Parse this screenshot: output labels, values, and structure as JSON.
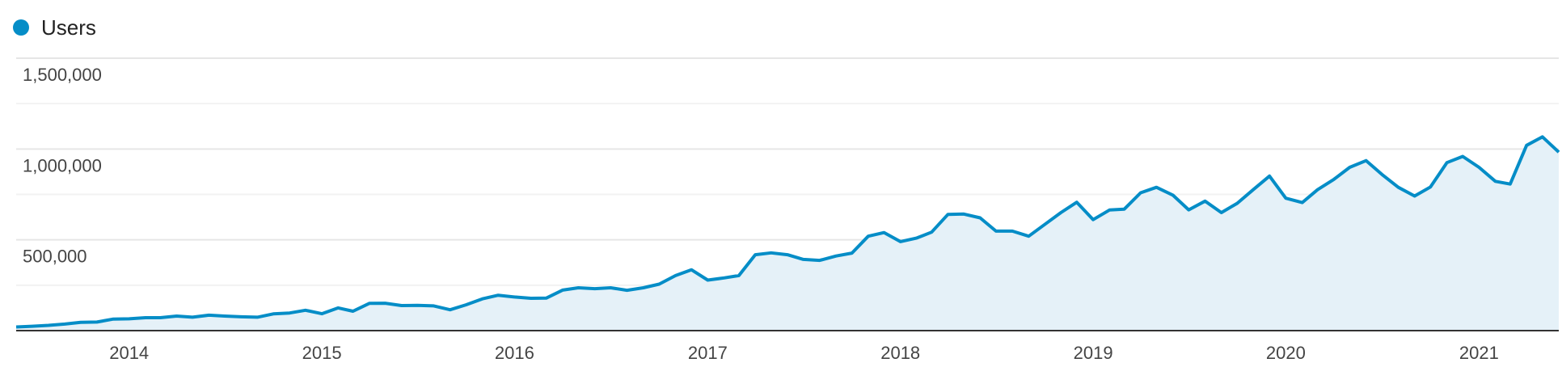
{
  "chart_data": {
    "type": "area",
    "series": [
      {
        "name": "Users",
        "color": "#058dc7",
        "fill": "#e5f1f8",
        "points": [
          [
            "2013-06",
            20000
          ],
          [
            "2013-07",
            24000
          ],
          [
            "2013-08",
            29000
          ],
          [
            "2013-09",
            36000
          ],
          [
            "2013-10",
            46000
          ],
          [
            "2013-11",
            47000
          ],
          [
            "2013-12",
            63000
          ],
          [
            "2014-01",
            65000
          ],
          [
            "2014-02",
            71000
          ],
          [
            "2014-03",
            71000
          ],
          [
            "2014-04",
            80000
          ],
          [
            "2014-05",
            74000
          ],
          [
            "2014-06",
            85000
          ],
          [
            "2014-07",
            80000
          ],
          [
            "2014-08",
            76000
          ],
          [
            "2014-09",
            74000
          ],
          [
            "2014-10",
            92000
          ],
          [
            "2014-11",
            97000
          ],
          [
            "2014-12",
            112000
          ],
          [
            "2015-01",
            93000
          ],
          [
            "2015-02",
            125000
          ],
          [
            "2015-03",
            107000
          ],
          [
            "2015-04",
            150000
          ],
          [
            "2015-05",
            151000
          ],
          [
            "2015-06",
            138000
          ],
          [
            "2015-07",
            139000
          ],
          [
            "2015-08",
            136000
          ],
          [
            "2015-09",
            115000
          ],
          [
            "2015-10",
            142000
          ],
          [
            "2015-11",
            175000
          ],
          [
            "2015-12",
            195000
          ],
          [
            "2016-01",
            185000
          ],
          [
            "2016-02",
            178000
          ],
          [
            "2016-03",
            179000
          ],
          [
            "2016-04",
            223000
          ],
          [
            "2016-05",
            236000
          ],
          [
            "2016-06",
            231000
          ],
          [
            "2016-07",
            236000
          ],
          [
            "2016-08",
            222000
          ],
          [
            "2016-09",
            236000
          ],
          [
            "2016-10",
            256000
          ],
          [
            "2016-11",
            303000
          ],
          [
            "2016-12",
            335000
          ],
          [
            "2017-01",
            278000
          ],
          [
            "2017-02",
            290000
          ],
          [
            "2017-03",
            303000
          ],
          [
            "2017-04",
            418000
          ],
          [
            "2017-05",
            428000
          ],
          [
            "2017-06",
            418000
          ],
          [
            "2017-07",
            392000
          ],
          [
            "2017-08",
            387000
          ],
          [
            "2017-09",
            411000
          ],
          [
            "2017-10",
            427000
          ],
          [
            "2017-11",
            520000
          ],
          [
            "2017-12",
            540000
          ],
          [
            "2018-01",
            490000
          ],
          [
            "2018-02",
            510000
          ],
          [
            "2018-03",
            542000
          ],
          [
            "2018-04",
            640000
          ],
          [
            "2018-05",
            642000
          ],
          [
            "2018-06",
            621000
          ],
          [
            "2018-07",
            548000
          ],
          [
            "2018-08",
            548000
          ],
          [
            "2018-09",
            520000
          ],
          [
            "2018-10",
            584000
          ],
          [
            "2018-11",
            650000
          ],
          [
            "2018-12",
            707000
          ],
          [
            "2019-01",
            611000
          ],
          [
            "2019-02",
            664000
          ],
          [
            "2019-03",
            669000
          ],
          [
            "2019-04",
            759000
          ],
          [
            "2019-05",
            789000
          ],
          [
            "2019-06",
            746000
          ],
          [
            "2019-07",
            665000
          ],
          [
            "2019-08",
            713000
          ],
          [
            "2019-09",
            650000
          ],
          [
            "2019-10",
            701000
          ],
          [
            "2019-11",
            778000
          ],
          [
            "2019-12",
            851000
          ],
          [
            "2020-01",
            729000
          ],
          [
            "2020-02",
            705000
          ],
          [
            "2020-03",
            776000
          ],
          [
            "2020-04",
            833000
          ],
          [
            "2020-05",
            899000
          ],
          [
            "2020-06",
            936000
          ],
          [
            "2020-07",
            860000
          ],
          [
            "2020-08",
            789000
          ],
          [
            "2020-09",
            741000
          ],
          [
            "2020-10",
            791000
          ],
          [
            "2020-11",
            925000
          ],
          [
            "2020-12",
            959000
          ],
          [
            "2021-01",
            899000
          ],
          [
            "2021-02",
            822000
          ],
          [
            "2021-03",
            807000
          ],
          [
            "2021-04",
            1020000
          ],
          [
            "2021-05",
            1067000
          ],
          [
            "2021-06",
            983000
          ]
        ]
      }
    ],
    "x_ticks": [
      "2014",
      "2015",
      "2016",
      "2017",
      "2018",
      "2019",
      "2020",
      "2021"
    ],
    "y_ticks": [
      "1,500,000",
      "1,000,000",
      "500,000"
    ],
    "ylim": [
      0,
      1500000
    ],
    "grid": true,
    "legend": "top-left"
  }
}
